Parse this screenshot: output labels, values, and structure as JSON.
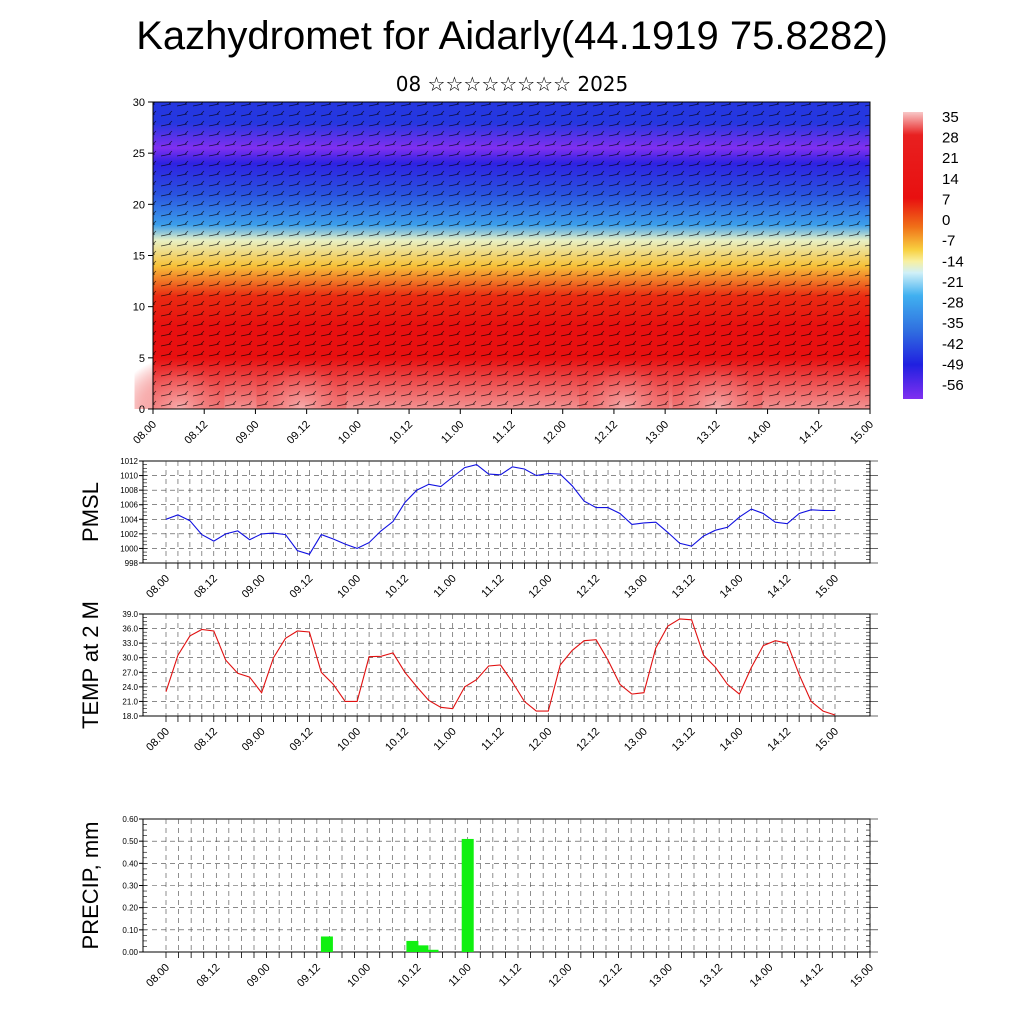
{
  "title": "Kazhydromet for Aidarly(44.1919 75.8282)",
  "subtitle": "08 ☆☆☆☆☆☆☆☆ 2025",
  "time_labels": [
    "08.00",
    "08.12",
    "09.00",
    "09.12",
    "10.00",
    "10.12",
    "11.00",
    "11.12",
    "12.00",
    "12.12",
    "13.00",
    "13.12",
    "14.00",
    "14.12",
    "15.00"
  ],
  "chart_data": [
    {
      "type": "heatmap",
      "name": "",
      "ylim": [
        0,
        30
      ],
      "yticks": [
        "0",
        "5",
        "10",
        "15",
        "20",
        "25",
        "30"
      ],
      "colorbar": [
        "35",
        "28",
        "21",
        "14",
        "7",
        "0",
        "-7",
        "-14",
        "-21",
        "-28",
        "-35",
        "-42",
        "-49",
        "-56"
      ],
      "colors": {
        "hot": "#f09090",
        "warm": "#e81010",
        "yellow": "#f8e870",
        "cyan": "#40b0f0",
        "blue": "#2020e0",
        "violet": "#8030f0"
      },
      "profile": [
        {
          "z": 0,
          "t": 33
        },
        {
          "z": 5,
          "t": 27
        },
        {
          "z": 8,
          "t": 22
        },
        {
          "z": 11,
          "t": 12
        },
        {
          "z": 14,
          "t": 1
        },
        {
          "z": 16.5,
          "t": -10
        },
        {
          "z": 18,
          "t": -25
        },
        {
          "z": 21,
          "t": -40
        },
        {
          "z": 24,
          "t": -50
        },
        {
          "z": 25.5,
          "t": -56
        },
        {
          "z": 28,
          "t": -45
        },
        {
          "z": 30,
          "t": -45
        }
      ]
    },
    {
      "type": "line",
      "ylabel": "PMSL",
      "ylim": [
        998,
        1012
      ],
      "yticks": [
        "998",
        "1000",
        "1002",
        "1004",
        "1006",
        "1008",
        "1010",
        "1012"
      ],
      "color": "#1010e0",
      "values": [
        1004,
        1004.6,
        1003.8,
        1001.9,
        1001,
        1002,
        1002.4,
        1001.2,
        1002,
        1002.1,
        1001.9,
        999.7,
        999.2,
        1001.9,
        1001.3,
        1000.6,
        1000,
        1000.8,
        1002.4,
        1003.7,
        1006.3,
        1008,
        1008.8,
        1008.5,
        1009.8,
        1011.1,
        1011.5,
        1010.2,
        1010.1,
        1011.2,
        1010.9,
        1010,
        1010.3,
        1010.2,
        1008.6,
        1006.5,
        1005.6,
        1005.6,
        1004.8,
        1003.3,
        1003.5,
        1003.6,
        1002.2,
        1000.7,
        1000.3,
        1001.7,
        1002.5,
        1002.9,
        1004.3,
        1005.4,
        1004.8,
        1003.6,
        1003.4,
        1004.8,
        1005.3,
        1005.2,
        1005.2
      ]
    },
    {
      "type": "line",
      "ylabel": "TEMP at 2 M",
      "ylim": [
        18,
        39
      ],
      "yticks": [
        "18.0",
        "21.0",
        "24.0",
        "27.0",
        "30.0",
        "33.0",
        "36.0",
        "39.0"
      ],
      "color": "#e01010",
      "values": [
        23,
        30.5,
        34.5,
        35.8,
        35.5,
        29.5,
        26.8,
        26,
        22.8,
        30,
        34,
        35.5,
        35.3,
        27,
        24.5,
        21,
        21,
        30.2,
        30.3,
        31,
        27,
        24,
        21.2,
        19.8,
        19.5,
        24,
        25.5,
        28.3,
        28.5,
        25,
        21,
        19,
        19,
        28.5,
        31.5,
        33.5,
        33.7,
        29.5,
        24.5,
        22.5,
        22.8,
        32,
        36.5,
        38,
        37.8,
        30.5,
        28,
        24.5,
        22.5,
        28,
        32.5,
        33.5,
        33,
        26.5,
        21,
        19,
        18.2
      ]
    },
    {
      "type": "bar",
      "ylabel": "PRECIP, mm",
      "ylim": [
        0,
        0.6
      ],
      "yticks": [
        "0.00",
        "0.10",
        "0.20",
        "0.30",
        "0.40",
        "0.50",
        "0.60"
      ],
      "color": "#10f010",
      "bars": [
        {
          "x": 1.6,
          "value": 0.07
        },
        {
          "x": 2.45,
          "value": 0.05
        },
        {
          "x": 2.55,
          "value": 0.03
        },
        {
          "x": 2.65,
          "value": 0.01
        },
        {
          "x": 3.0,
          "value": 0.51
        }
      ]
    }
  ]
}
